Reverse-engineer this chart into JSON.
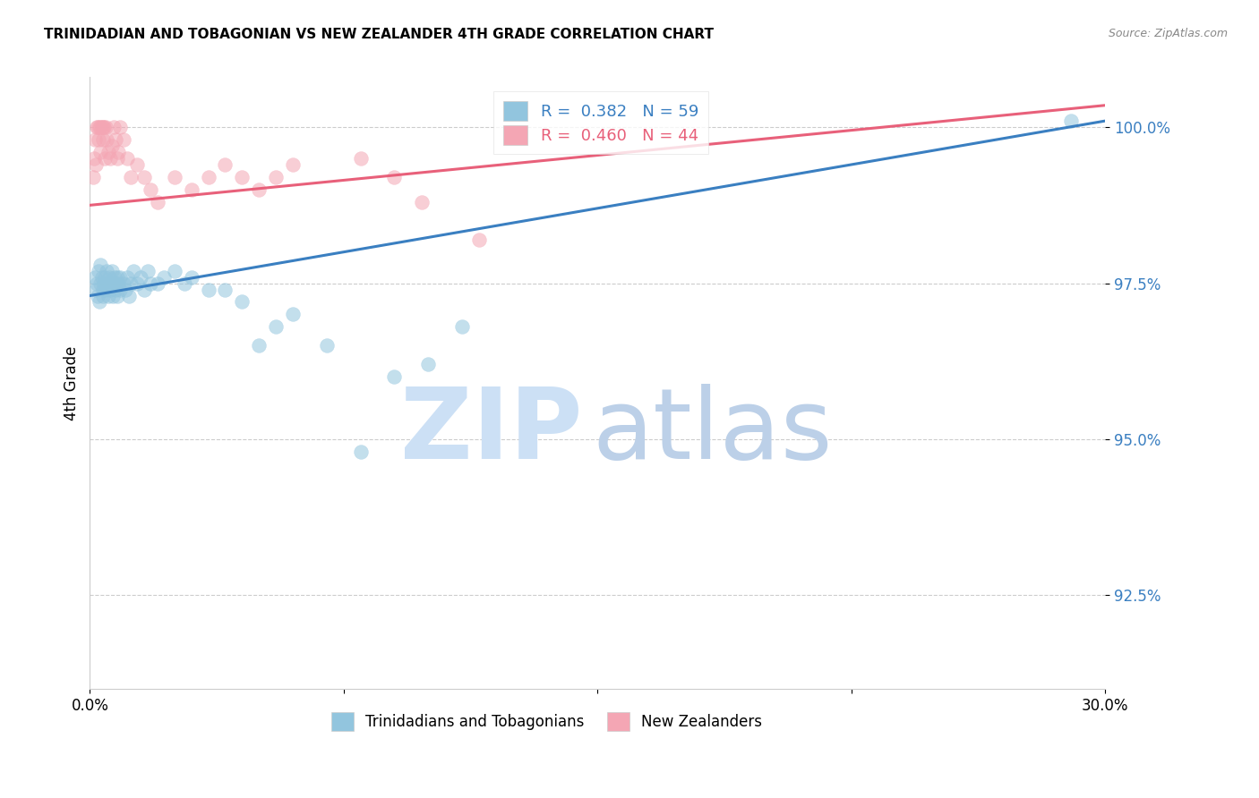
{
  "title": "TRINIDADIAN AND TOBAGONIAN VS NEW ZEALANDER 4TH GRADE CORRELATION CHART",
  "source": "Source: ZipAtlas.com",
  "ylabel": "4th Grade",
  "x_min": 0.0,
  "x_max": 30.0,
  "y_min": 91.0,
  "y_max": 100.8,
  "y_ticks": [
    92.5,
    95.0,
    97.5,
    100.0
  ],
  "x_ticks": [
    0.0,
    7.5,
    15.0,
    22.5,
    30.0
  ],
  "x_tick_labels": [
    "0.0%",
    "",
    "",
    "",
    "30.0%"
  ],
  "legend_blue_label": "R =  0.382   N = 59",
  "legend_pink_label": "R =  0.460   N = 44",
  "legend_bottom_blue": "Trinidadians and Tobagonians",
  "legend_bottom_pink": "New Zealanders",
  "blue_color": "#92c5de",
  "pink_color": "#f4a6b4",
  "blue_line_color": "#3a7fc1",
  "pink_line_color": "#e8607a",
  "blue_line_x0": 0.0,
  "blue_line_y0": 97.3,
  "blue_line_x1": 30.0,
  "blue_line_y1": 100.1,
  "pink_line_x0": 0.0,
  "pink_line_y0": 98.75,
  "pink_line_x1": 30.0,
  "pink_line_y1": 100.35,
  "blue_scatter_x": [
    0.15,
    0.18,
    0.2,
    0.22,
    0.25,
    0.28,
    0.3,
    0.32,
    0.35,
    0.38,
    0.4,
    0.42,
    0.45,
    0.48,
    0.5,
    0.52,
    0.55,
    0.58,
    0.6,
    0.62,
    0.65,
    0.68,
    0.7,
    0.72,
    0.75,
    0.78,
    0.8,
    0.82,
    0.85,
    0.88,
    0.9,
    1.0,
    1.05,
    1.1,
    1.15,
    1.2,
    1.3,
    1.4,
    1.5,
    1.6,
    1.7,
    1.8,
    2.0,
    2.2,
    2.5,
    2.8,
    3.0,
    3.5,
    4.0,
    4.5,
    5.0,
    5.5,
    6.0,
    7.0,
    8.0,
    9.0,
    10.0,
    11.0,
    29.0
  ],
  "blue_scatter_y": [
    97.6,
    97.4,
    97.5,
    97.3,
    97.7,
    97.2,
    97.5,
    97.8,
    97.6,
    97.4,
    97.3,
    97.5,
    97.6,
    97.4,
    97.7,
    97.5,
    97.3,
    97.6,
    97.4,
    97.5,
    97.7,
    97.3,
    97.5,
    97.6,
    97.4,
    97.5,
    97.6,
    97.3,
    97.5,
    97.4,
    97.6,
    97.5,
    97.4,
    97.6,
    97.3,
    97.5,
    97.7,
    97.5,
    97.6,
    97.4,
    97.7,
    97.5,
    97.5,
    97.6,
    97.7,
    97.5,
    97.6,
    97.4,
    97.4,
    97.2,
    96.5,
    96.8,
    97.0,
    96.5,
    94.8,
    96.0,
    96.2,
    96.8,
    100.1
  ],
  "pink_scatter_x": [
    0.1,
    0.12,
    0.15,
    0.18,
    0.2,
    0.22,
    0.25,
    0.28,
    0.3,
    0.32,
    0.35,
    0.38,
    0.4,
    0.42,
    0.45,
    0.48,
    0.5,
    0.55,
    0.6,
    0.65,
    0.7,
    0.75,
    0.8,
    0.85,
    0.9,
    1.0,
    1.1,
    1.2,
    1.4,
    1.6,
    1.8,
    2.0,
    2.5,
    3.0,
    3.5,
    4.0,
    4.5,
    5.0,
    5.5,
    6.0,
    8.0,
    9.0,
    9.8,
    11.5
  ],
  "pink_scatter_y": [
    99.2,
    99.5,
    99.8,
    99.4,
    100.0,
    100.0,
    99.8,
    100.0,
    99.6,
    100.0,
    100.0,
    99.8,
    100.0,
    100.0,
    99.5,
    100.0,
    99.8,
    99.6,
    99.5,
    99.7,
    100.0,
    99.8,
    99.5,
    99.6,
    100.0,
    99.8,
    99.5,
    99.2,
    99.4,
    99.2,
    99.0,
    98.8,
    99.2,
    99.0,
    99.2,
    99.4,
    99.2,
    99.0,
    99.2,
    99.4,
    99.5,
    99.2,
    98.8,
    98.2
  ],
  "watermark_zip_color": "#cce0f5",
  "watermark_atlas_color": "#bcd0e8"
}
